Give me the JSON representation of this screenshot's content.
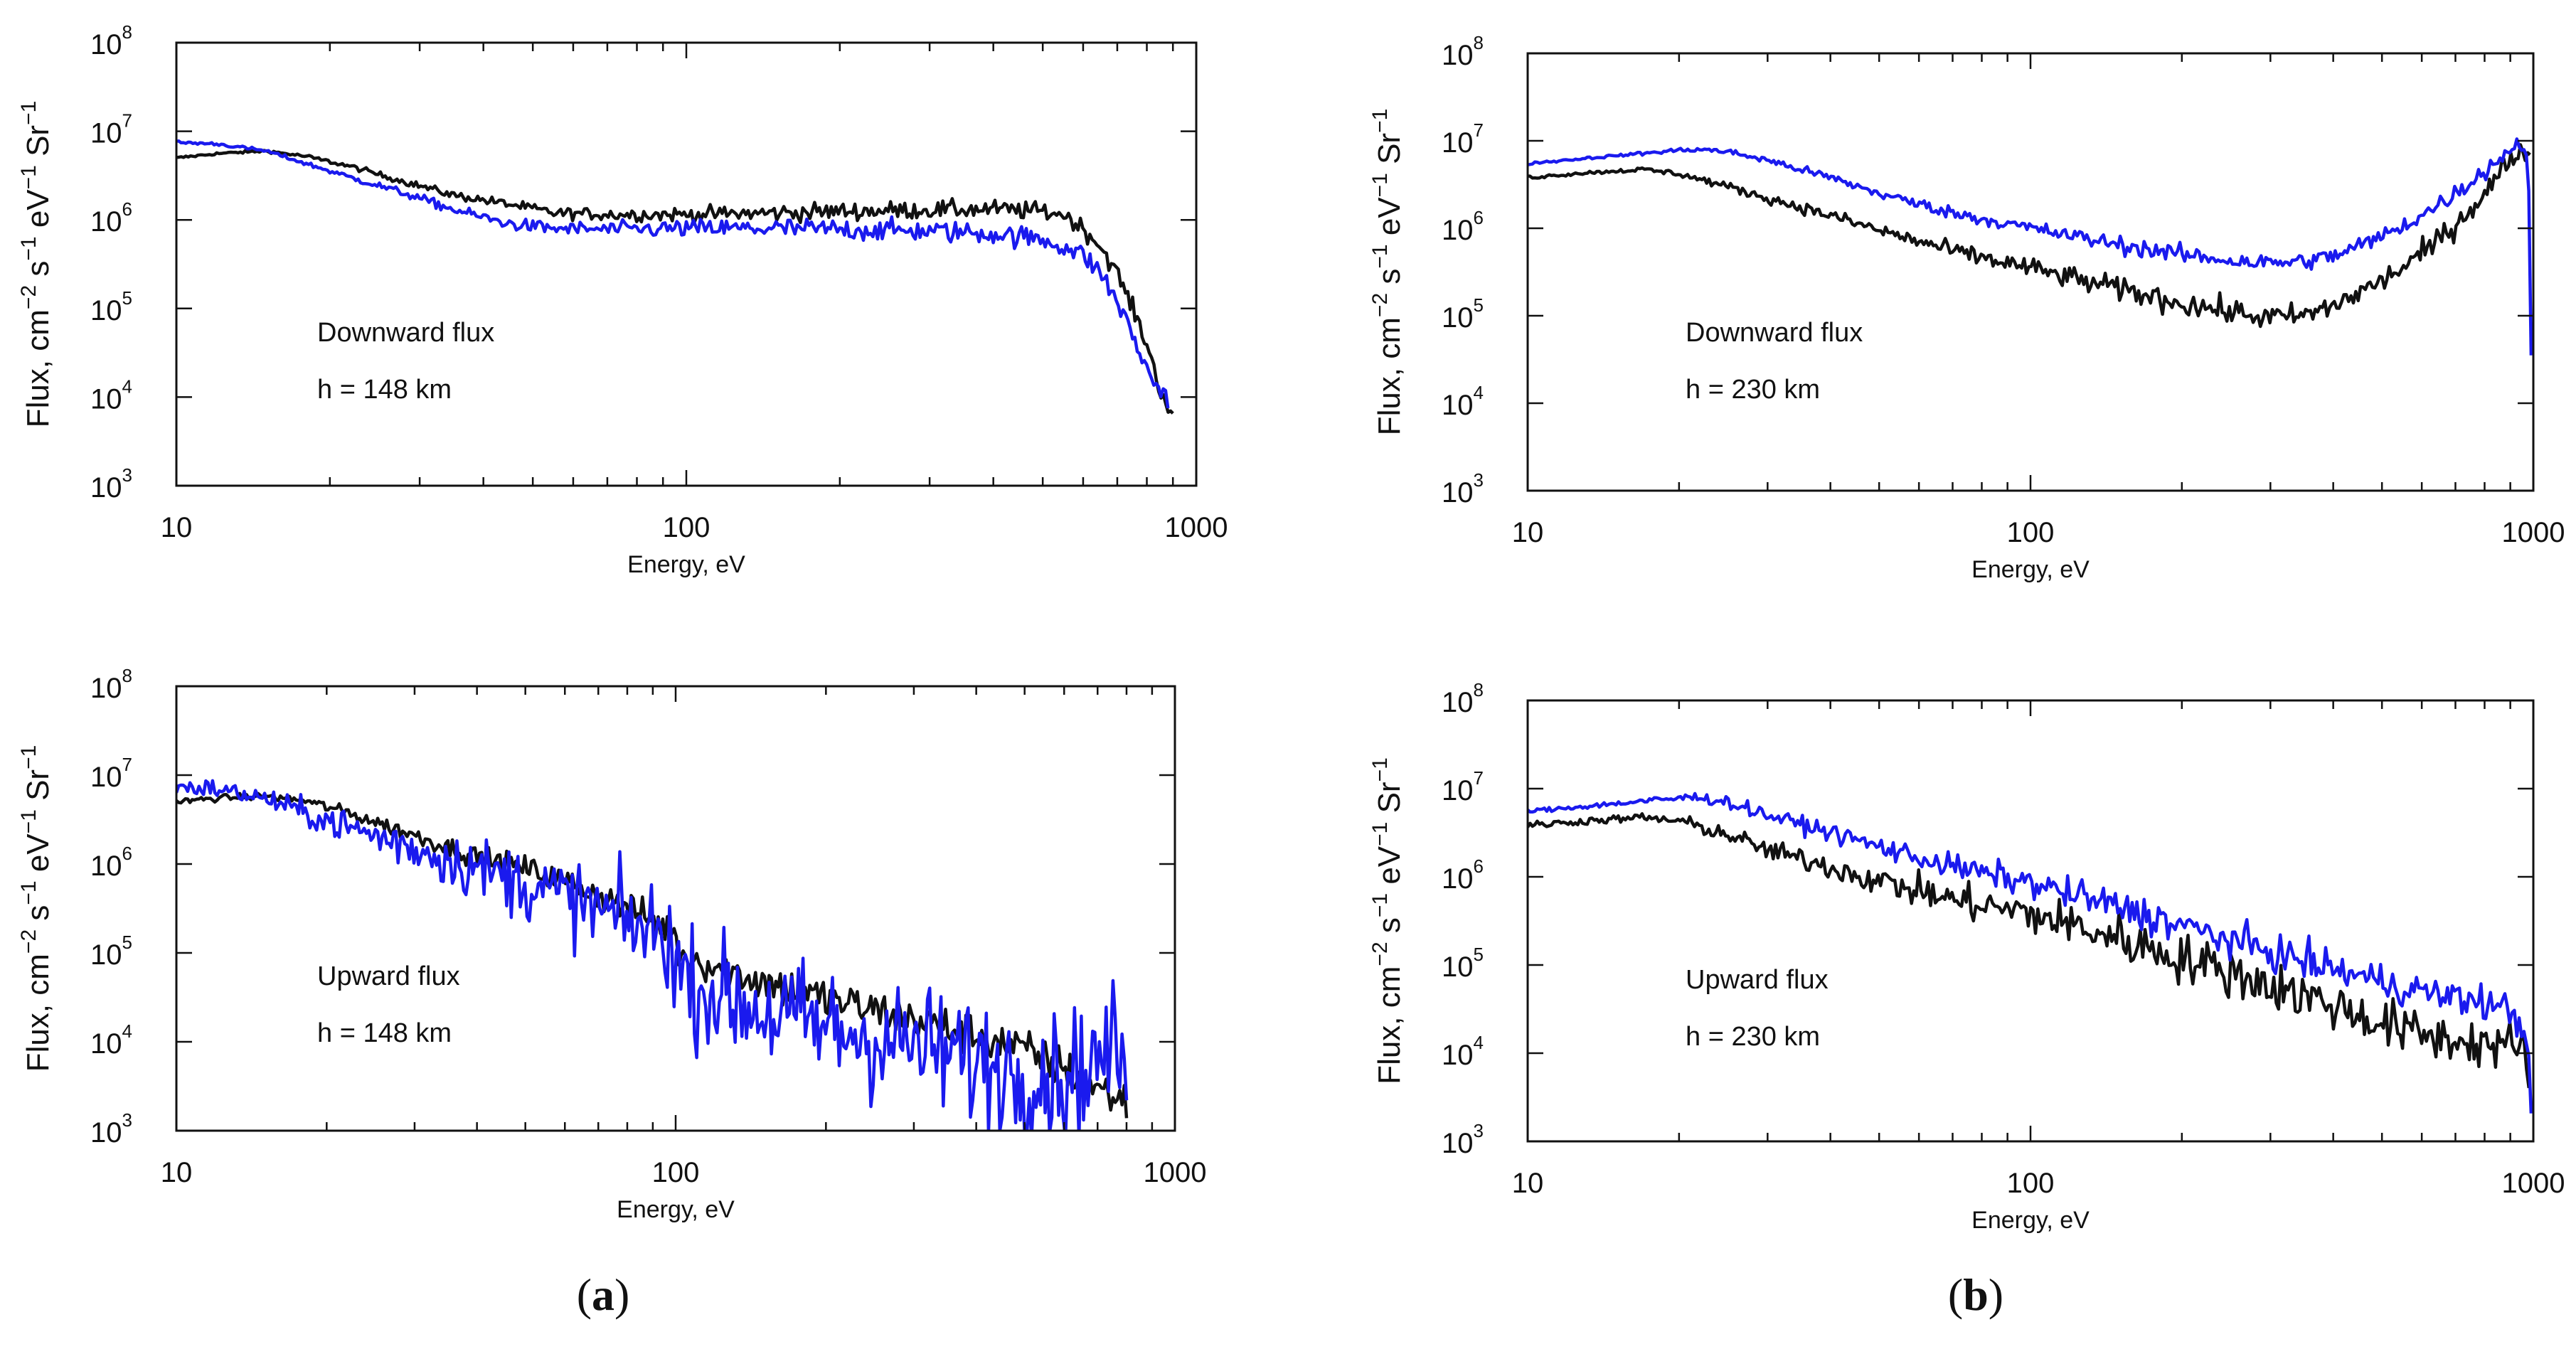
{
  "figure": {
    "panel_labels": [
      {
        "open": "(",
        "letter": "a",
        "close": ")"
      },
      {
        "open": "(",
        "letter": "b",
        "close": ")"
      }
    ]
  },
  "colors": {
    "black_series": "#111111",
    "blue_series": "#1a1aee",
    "axis": "#111111",
    "background": "#ffffff"
  },
  "chart_data": [
    {
      "type": "line",
      "column": "a",
      "title": "",
      "xlabel": "Energy, eV",
      "ylabel_parts": [
        "Flux, cm",
        "−2",
        " s",
        "−1",
        " eV",
        "−1",
        " Sr",
        "−1"
      ],
      "xscale": "log",
      "yscale": "log",
      "xlim": [
        10,
        1000
      ],
      "ylim": [
        1000,
        100000000
      ],
      "xticks": [
        "10",
        "100",
        "1000"
      ],
      "yticks": [
        {
          "base": "10",
          "exp": "3"
        },
        {
          "base": "10",
          "exp": "4"
        },
        {
          "base": "10",
          "exp": "5"
        },
        {
          "base": "10",
          "exp": "6"
        },
        {
          "base": "10",
          "exp": "7"
        },
        {
          "base": "10",
          "exp": "8"
        }
      ],
      "annotations": [
        "Downward flux",
        "h = 148 km"
      ],
      "grid": false,
      "series": [
        {
          "name": "black",
          "color": "#111111",
          "noise": 0.05,
          "x": [
            10,
            12,
            15,
            18,
            22,
            28,
            35,
            45,
            55,
            70,
            100,
            150,
            200,
            300,
            400,
            500,
            550,
            600,
            650,
            700,
            750,
            800,
            850,
            900
          ],
          "y": [
            5000000,
            5600000,
            6000000,
            5200000,
            4000000,
            2700000,
            1900000,
            1500000,
            1200000,
            1150000,
            1150000,
            1200000,
            1250000,
            1300000,
            1320000,
            1250000,
            1150000,
            800000,
            500000,
            250000,
            100000,
            40000,
            12000,
            6000
          ]
        },
        {
          "name": "blue",
          "color": "#1a1aee",
          "noise": 0.06,
          "x": [
            10,
            12,
            15,
            18,
            22,
            28,
            35,
            45,
            55,
            70,
            100,
            150,
            200,
            300,
            400,
            500,
            550,
            600,
            650,
            700,
            750,
            800,
            850,
            880
          ],
          "y": [
            7500000,
            7200000,
            6000000,
            4300000,
            3000000,
            2000000,
            1300000,
            900000,
            800000,
            780000,
            800000,
            800000,
            780000,
            750000,
            700000,
            600000,
            500000,
            400000,
            250000,
            120000,
            50000,
            20000,
            12000,
            10000
          ]
        }
      ]
    },
    {
      "type": "line",
      "column": "a",
      "title": "",
      "xlabel": "Energy, eV",
      "ylabel_parts": [
        "Flux, cm",
        "−2",
        " s",
        "−1",
        " eV",
        "−1",
        " Sr",
        "−1"
      ],
      "xscale": "log",
      "yscale": "log",
      "xlim": [
        10,
        1000
      ],
      "ylim": [
        1000,
        100000000
      ],
      "xticks": [
        "10",
        "100",
        "1000"
      ],
      "yticks": [
        {
          "base": "10",
          "exp": "3"
        },
        {
          "base": "10",
          "exp": "4"
        },
        {
          "base": "10",
          "exp": "5"
        },
        {
          "base": "10",
          "exp": "6"
        },
        {
          "base": "10",
          "exp": "7"
        },
        {
          "base": "10",
          "exp": "8"
        }
      ],
      "annotations": [
        "Upward flux",
        "h = 148 km"
      ],
      "grid": false,
      "series": [
        {
          "name": "black",
          "color": "#111111",
          "noise": 0.12,
          "x": [
            10,
            12,
            15,
            18,
            22,
            30,
            40,
            50,
            60,
            70,
            80,
            90,
            98,
            102,
            110,
            130,
            150,
            200,
            300,
            400,
            500,
            600,
            700,
            750,
            780,
            800
          ],
          "y": [
            5000000,
            5500000,
            5800000,
            5200000,
            3800000,
            2100000,
            1200000,
            900000,
            650000,
            450000,
            320000,
            230000,
            180000,
            100000,
            85000,
            60000,
            48000,
            30000,
            18000,
            12000,
            8000,
            5000,
            3000,
            2500,
            2200,
            2000
          ]
        },
        {
          "name": "blue",
          "color": "#1a1aee",
          "noise": 0.35,
          "x": [
            10,
            12,
            15,
            18,
            22,
            30,
            40,
            50,
            60,
            70,
            80,
            90,
            98,
            102,
            110,
            130,
            150,
            200,
            300,
            400,
            500,
            600,
            700,
            750,
            800
          ],
          "y": [
            7500000,
            7000000,
            5500000,
            3800000,
            2600000,
            1500000,
            900000,
            600000,
            420000,
            300000,
            220000,
            170000,
            140000,
            60000,
            40000,
            30000,
            22000,
            14000,
            9000,
            6000,
            4500,
            4000,
            6000,
            9000,
            5000
          ]
        }
      ]
    },
    {
      "type": "line",
      "column": "b",
      "title": "",
      "xlabel": "Energy, eV",
      "ylabel_parts": [
        "Flux, cm",
        "−2",
        " s",
        "−1",
        " eV",
        "−1",
        " Sr",
        "−1"
      ],
      "xscale": "log",
      "yscale": "log",
      "xlim": [
        10,
        1000
      ],
      "ylim": [
        1000,
        100000000
      ],
      "xticks": [
        "10",
        "100",
        "1000"
      ],
      "yticks": [
        {
          "base": "10",
          "exp": "3"
        },
        {
          "base": "10",
          "exp": "4"
        },
        {
          "base": "10",
          "exp": "5"
        },
        {
          "base": "10",
          "exp": "6"
        },
        {
          "base": "10",
          "exp": "7"
        },
        {
          "base": "10",
          "exp": "8"
        }
      ],
      "annotations": [
        "Downward flux",
        "h = 230 km"
      ],
      "grid": false,
      "series": [
        {
          "name": "black",
          "color": "#111111",
          "noise": 0.07,
          "x": [
            10,
            13,
            17,
            20,
            25,
            30,
            40,
            50,
            70,
            100,
            150,
            200,
            250,
            300,
            350,
            400,
            500,
            600,
            700,
            800,
            900,
            950,
            970,
            985
          ],
          "y": [
            3800000,
            4300000,
            4700000,
            4200000,
            3000000,
            2200000,
            1400000,
            950000,
            550000,
            350000,
            200000,
            140000,
            110000,
            95000,
            100000,
            130000,
            250000,
            500000,
            1100000,
            2500000,
            6000000,
            8500000,
            7000000,
            5000000
          ]
        },
        {
          "name": "blue",
          "color": "#1a1aee",
          "noise": 0.05,
          "x": [
            10,
            13,
            17,
            20,
            22,
            25,
            30,
            40,
            50,
            70,
            100,
            150,
            200,
            250,
            300,
            350,
            400,
            500,
            600,
            700,
            800,
            900,
            950,
            975,
            985,
            990
          ],
          "y": [
            5500000,
            6300000,
            7200000,
            7800000,
            8000000,
            7500000,
            6000000,
            3800000,
            2500000,
            1500000,
            1000000,
            650000,
            500000,
            430000,
            400000,
            420000,
            480000,
            800000,
            1400000,
            2500000,
            4500000,
            8000000,
            9500000,
            6000000,
            1000000,
            40000
          ]
        }
      ]
    },
    {
      "type": "line",
      "column": "b",
      "title": "",
      "xlabel": "Energy, eV",
      "ylabel_parts": [
        "Flux, cm",
        "−2",
        " s",
        "−1",
        " eV",
        "−1",
        " Sr",
        "−1"
      ],
      "xscale": "log",
      "yscale": "log",
      "xlim": [
        10,
        1000
      ],
      "ylim": [
        1000,
        100000000
      ],
      "xticks": [
        "10",
        "100",
        "1000"
      ],
      "yticks": [
        {
          "base": "10",
          "exp": "3"
        },
        {
          "base": "10",
          "exp": "4"
        },
        {
          "base": "10",
          "exp": "5"
        },
        {
          "base": "10",
          "exp": "6"
        },
        {
          "base": "10",
          "exp": "7"
        },
        {
          "base": "10",
          "exp": "8"
        }
      ],
      "annotations": [
        "Upward flux",
        "h = 230 km"
      ],
      "grid": false,
      "series": [
        {
          "name": "black",
          "color": "#111111",
          "noise": 0.14,
          "x": [
            10,
            13,
            17,
            20,
            25,
            30,
            40,
            50,
            70,
            100,
            150,
            200,
            300,
            400,
            500,
            600,
            700,
            800,
            900,
            950,
            980
          ],
          "y": [
            3800000,
            4300000,
            4700000,
            4300000,
            3000000,
            2000000,
            1300000,
            900000,
            550000,
            380000,
            200000,
            120000,
            60000,
            35000,
            22000,
            16000,
            14000,
            13000,
            12000,
            10000,
            8000
          ]
        },
        {
          "name": "blue",
          "color": "#1a1aee",
          "noise": 0.1,
          "x": [
            10,
            13,
            17,
            20,
            22,
            25,
            30,
            40,
            50,
            70,
            100,
            150,
            200,
            300,
            400,
            500,
            600,
            700,
            800,
            900,
            950,
            980,
            990
          ],
          "y": [
            5500000,
            6300000,
            7200000,
            7800000,
            8000000,
            7000000,
            5000000,
            3200000,
            2200000,
            1300000,
            850000,
            450000,
            280000,
            140000,
            90000,
            65000,
            50000,
            42000,
            38000,
            30000,
            20000,
            12000,
            2500
          ]
        }
      ]
    }
  ]
}
